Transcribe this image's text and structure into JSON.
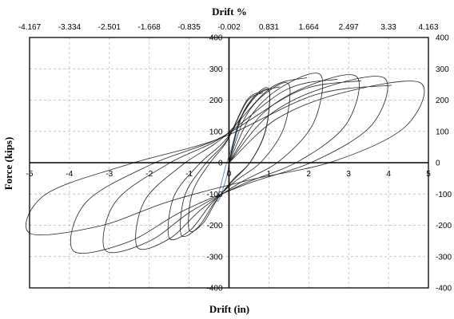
{
  "chart_data": {
    "type": "line",
    "title": "",
    "xlabel": "Drift (in)",
    "x2label": "Drift %",
    "ylabel": "Force (kips)",
    "xlim": [
      -5,
      5
    ],
    "ylim": [
      -400,
      400
    ],
    "x_ticks": [
      "-5",
      "-4",
      "-3",
      "-2",
      "-1",
      "0",
      "1",
      "2",
      "3",
      "4",
      "5"
    ],
    "x2_ticks": [
      "-4.167",
      "-3.334",
      "-2.501",
      "-1.668",
      "-0.835",
      "-0.002",
      "0.831",
      "1.664",
      "2.497",
      "3.33",
      "4.163"
    ],
    "y_ticks": [
      "400",
      "300",
      "200",
      "100",
      "0",
      "-100",
      "-200",
      "-300",
      "-400"
    ],
    "grid": true,
    "colors": {
      "curve": "#222222",
      "early_cycles": "#5b7fa8"
    },
    "early_cycles": [
      {
        "x": [
          0,
          0.08,
          0.18,
          0.3,
          0.22,
          0.05,
          -0.08,
          -0.18,
          -0.3,
          -0.22,
          -0.05,
          0
        ],
        "y": [
          0,
          40,
          90,
          140,
          120,
          40,
          -10,
          -60,
          -120,
          -110,
          -40,
          0
        ]
      }
    ],
    "cycles": [
      {
        "peak_pos": [
          1.0,
          230
        ],
        "peak_neg": [
          -1.0,
          -215
        ]
      },
      {
        "peak_pos": [
          1.0,
          235
        ],
        "peak_neg": [
          -1.2,
          -230
        ]
      },
      {
        "peak_pos": [
          1.5,
          250
        ],
        "peak_neg": [
          -1.5,
          -240
        ]
      },
      {
        "peak_pos": [
          2.3,
          280
        ],
        "peak_neg": [
          -2.3,
          -270
        ]
      },
      {
        "peak_pos": [
          3.2,
          275
        ],
        "peak_neg": [
          -3.1,
          -280
        ]
      },
      {
        "peak_pos": [
          3.9,
          270
        ],
        "peak_neg": [
          -3.9,
          -282
        ]
      },
      {
        "peak_pos": [
          4.8,
          255
        ],
        "peak_neg": [
          -5.0,
          -225
        ]
      }
    ]
  }
}
